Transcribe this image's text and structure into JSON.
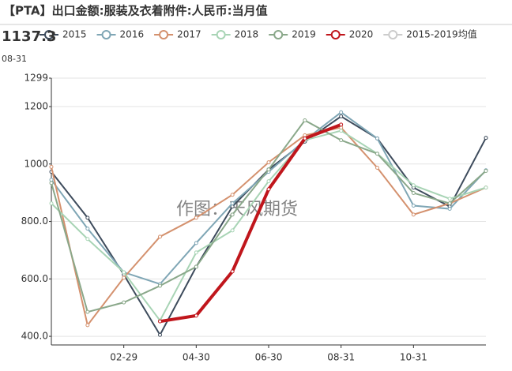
{
  "chart_data": {
    "type": "line",
    "title": "【PTA】出口金额:服装及衣着附件:人民币:当月值",
    "watermark": "作图：天风期货",
    "tooltip": {
      "value": 1137.3,
      "label": "08-31"
    },
    "categories": [
      null,
      null,
      "02-29",
      null,
      "04-30",
      null,
      "06-30",
      null,
      "08-31",
      null,
      "10-31",
      null,
      null
    ],
    "ylim": [
      370,
      1299
    ],
    "yticks": [
      {
        "value": 400,
        "label": "400.0"
      },
      {
        "value": 600,
        "label": "600.0"
      },
      {
        "value": 800,
        "label": "800.0"
      },
      1000,
      1200,
      1299
    ],
    "grid": true,
    "series": [
      {
        "name": "2015",
        "color": "#3d4b5c",
        "values": [
          973,
          813,
          615,
          405,
          642,
          852,
          981,
          1078,
          1166,
          1089,
          918,
          852,
          1091
        ]
      },
      {
        "name": "2016",
        "color": "#7fa6b5",
        "values": [
          945,
          775,
          623,
          582,
          725,
          863,
          973,
          1083,
          1180,
          1089,
          855,
          844,
          978
        ]
      },
      {
        "name": "2017",
        "color": "#d4916e",
        "values": [
          990,
          439,
          604,
          747,
          813,
          893,
          1006,
          1100,
          1127,
          987,
          824,
          863,
          918
        ]
      },
      {
        "name": "2018",
        "color": "#a8d4b5",
        "values": [
          863,
          739,
          623,
          455,
          692,
          769,
          940,
          1083,
          1116,
          1036,
          926,
          879,
          918
        ]
      },
      {
        "name": "2019",
        "color": "#8aa88a",
        "values": [
          934,
          485,
          518,
          576,
          642,
          824,
          981,
          1152,
          1083,
          1036,
          899,
          863,
          976
        ]
      },
      {
        "name": "2020",
        "color": "#c0161c",
        "width": 4,
        "values": [
          null,
          null,
          null,
          452,
          472,
          626,
          912,
          1089,
          1137.3,
          null,
          null,
          null,
          null
        ]
      },
      {
        "name": "2015-2019均值",
        "color": "#cccccc",
        "visible": false,
        "values": [
          null,
          null,
          null,
          null,
          null,
          null,
          null,
          null,
          null,
          null,
          null,
          null,
          null
        ]
      }
    ]
  }
}
